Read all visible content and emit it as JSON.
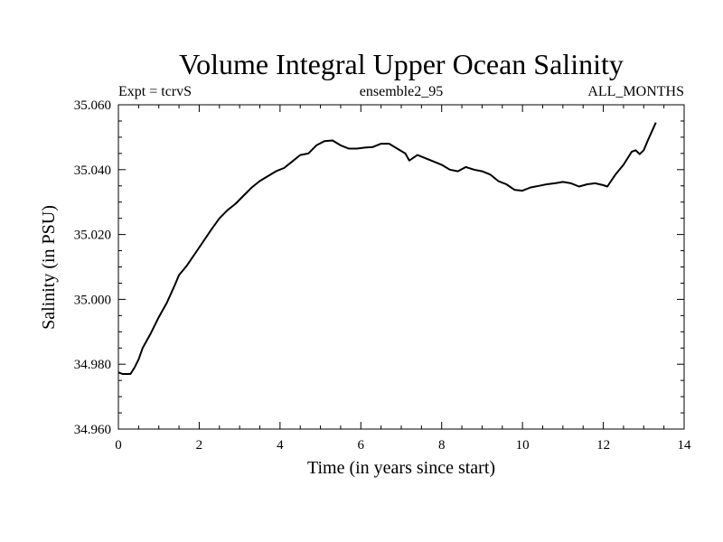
{
  "chart_data": {
    "type": "line",
    "title": "Volume Integral Upper Ocean Salinity",
    "subtitle_left": "Expt = tcrvS",
    "subtitle_center": "ensemble2_95",
    "subtitle_right": "ALL_MONTHS",
    "xlabel": "Time (in years since start)",
    "ylabel": "Salinity (in PSU)",
    "xlim": [
      0,
      14
    ],
    "ylim": [
      34.96,
      35.06
    ],
    "x_ticks": [
      0,
      2,
      4,
      6,
      8,
      10,
      12,
      14
    ],
    "x_tick_labels": [
      "0",
      "2",
      "4",
      "6",
      "8",
      "10",
      "12",
      "14"
    ],
    "y_ticks": [
      34.96,
      34.98,
      35.0,
      35.02,
      35.04,
      35.06
    ],
    "y_tick_labels": [
      "34.960",
      "34.980",
      "35.000",
      "35.020",
      "35.040",
      "35.060"
    ],
    "grid": false,
    "line_color": "#000000",
    "series": [
      {
        "name": "salinity",
        "x": [
          0.0,
          0.1,
          0.2,
          0.3,
          0.4,
          0.5,
          0.6,
          0.8,
          1.0,
          1.2,
          1.4,
          1.5,
          1.7,
          2.0,
          2.3,
          2.5,
          2.7,
          2.9,
          3.1,
          3.3,
          3.5,
          3.7,
          3.9,
          4.1,
          4.3,
          4.5,
          4.7,
          4.9,
          5.1,
          5.3,
          5.5,
          5.7,
          5.9,
          6.1,
          6.3,
          6.5,
          6.7,
          6.9,
          7.1,
          7.2,
          7.4,
          7.6,
          7.8,
          8.0,
          8.2,
          8.4,
          8.6,
          8.8,
          9.0,
          9.2,
          9.4,
          9.6,
          9.8,
          10.0,
          10.2,
          10.4,
          10.6,
          10.8,
          11.0,
          11.2,
          11.4,
          11.6,
          11.8,
          12.0,
          12.1,
          12.3,
          12.5,
          12.7,
          12.8,
          12.9,
          13.0,
          13.1,
          13.3
        ],
        "values": [
          34.9775,
          34.977,
          34.977,
          34.977,
          34.979,
          34.9815,
          34.985,
          34.9895,
          34.9945,
          34.999,
          35.0045,
          35.0075,
          35.0105,
          35.016,
          35.0215,
          35.025,
          35.0275,
          35.0295,
          35.032,
          35.0345,
          35.0365,
          35.038,
          35.0395,
          35.0405,
          35.0425,
          35.0445,
          35.045,
          35.0475,
          35.0488,
          35.049,
          35.0475,
          35.0465,
          35.0465,
          35.0468,
          35.047,
          35.048,
          35.048,
          35.0465,
          35.045,
          35.0428,
          35.0445,
          35.0435,
          35.0425,
          35.0415,
          35.04,
          35.0395,
          35.0408,
          35.04,
          35.0395,
          35.0385,
          35.0365,
          35.0355,
          35.0338,
          35.0335,
          35.0345,
          35.035,
          35.0355,
          35.0358,
          35.0362,
          35.0358,
          35.0348,
          35.0355,
          35.0358,
          35.0352,
          35.0348,
          35.0385,
          35.0415,
          35.0455,
          35.046,
          35.0448,
          35.046,
          35.049,
          35.0545
        ]
      }
    ]
  }
}
